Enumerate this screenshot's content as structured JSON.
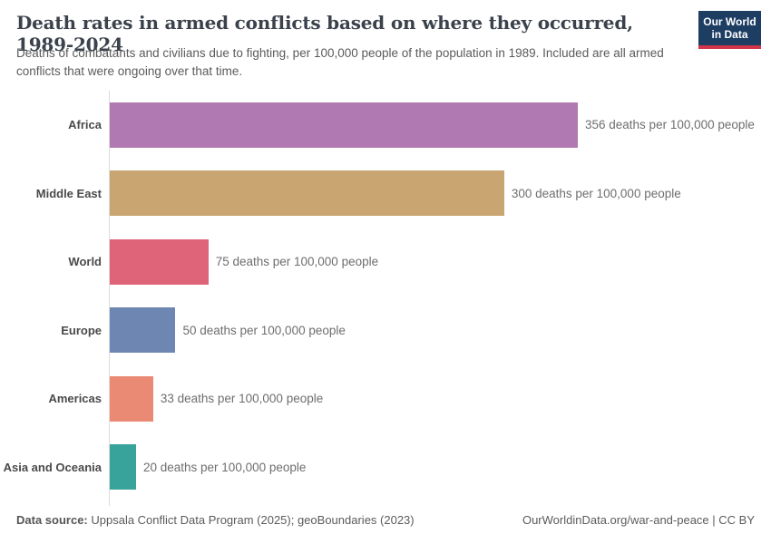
{
  "header": {
    "title": "Death rates in armed conflicts based on where they occurred, 1989-2024",
    "subtitle": "Deaths of combatants and civilians due to fighting, per 100,000 people of the population in 1989. Included are all armed conflicts that were ongoing over that time.",
    "logo": {
      "line1": "Our World",
      "line2": "in Data",
      "bg_color": "#1d3d63",
      "accent_color": "#d0354a"
    }
  },
  "chart_data": {
    "type": "bar",
    "orientation": "horizontal",
    "title": "Death rates in armed conflicts based on where they occurred, 1989-2024",
    "unit": "deaths per 100,000 people",
    "categories": [
      "Africa",
      "Middle East",
      "World",
      "Europe",
      "Americas",
      "Asia and Oceania"
    ],
    "values": [
      356,
      300,
      75,
      50,
      33,
      20
    ],
    "value_labels": [
      "356 deaths per 100,000 people",
      "300 deaths per 100,000 people",
      "75 deaths per 100,000 people",
      "50 deaths per 100,000 people",
      "33 deaths per 100,000 people",
      "20 deaths per 100,000 people"
    ],
    "bar_colors": [
      "#b179b1",
      "#c9a671",
      "#e06479",
      "#6d87b2",
      "#ea8a75",
      "#38a39a"
    ],
    "xlim": [
      0,
      356
    ],
    "grid": false,
    "legend": "none"
  },
  "footer": {
    "source_bold": "Data source:",
    "source_rest": " Uppsala Conflict Data Program (2025); geoBoundaries (2023)",
    "right_text": "OurWorldinData.org/war-and-peace | CC BY"
  }
}
